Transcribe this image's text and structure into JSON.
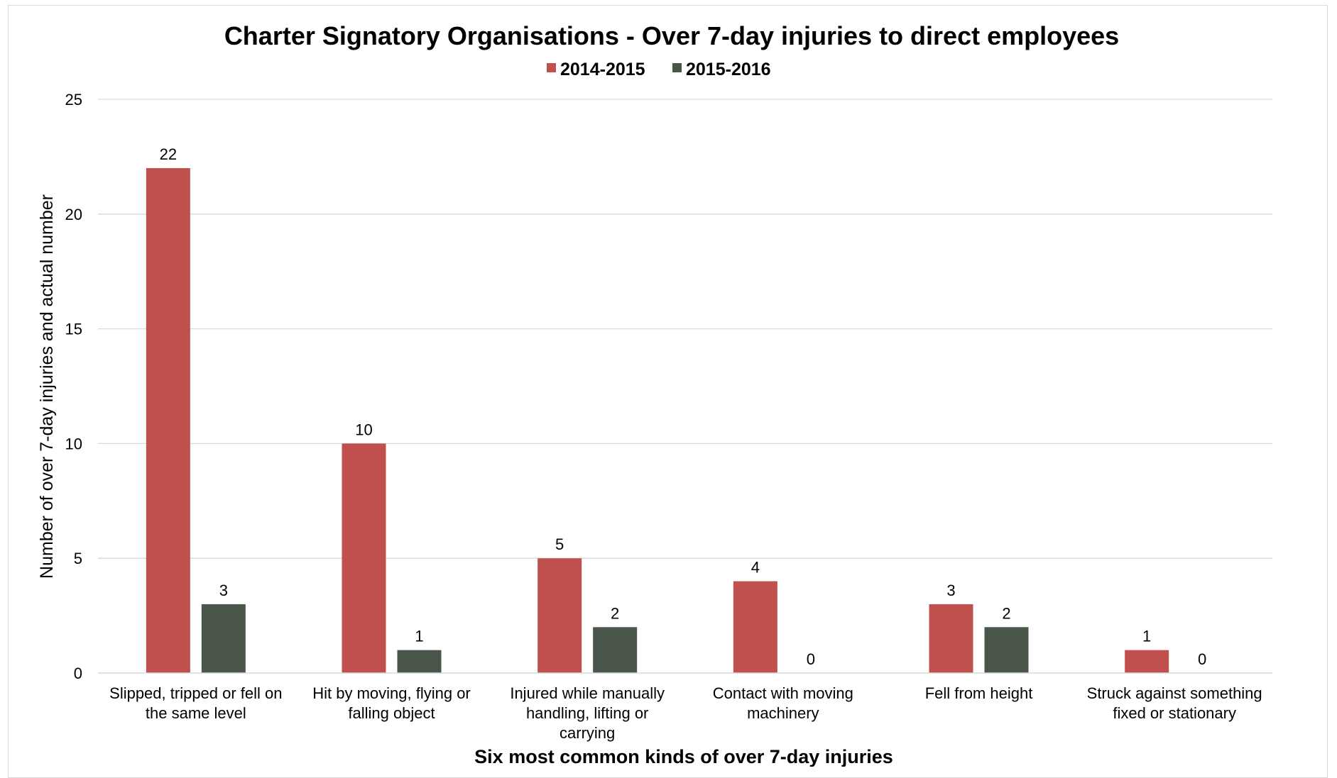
{
  "chart_data": {
    "type": "bar",
    "title": "Charter Signatory Organisations - Over 7-day injuries to direct employees",
    "xlabel": "Six most common kinds of over 7-day injuries",
    "ylabel": "Number of over 7-day injuries and actual number",
    "ylim": [
      0,
      25
    ],
    "yticks": [
      "0",
      "5",
      "10",
      "15",
      "20",
      "25"
    ],
    "grid": true,
    "legend_position": "top",
    "categories": [
      [
        "Slipped, tripped or fell on",
        "the same level"
      ],
      [
        "Hit by moving, flying or",
        "falling object"
      ],
      [
        "Injured while manually",
        "handling, lifting or",
        "carrying"
      ],
      [
        "Contact with moving",
        "machinery"
      ],
      [
        "Fell from height"
      ],
      [
        "Struck against something",
        "fixed or stationary"
      ]
    ],
    "series": [
      {
        "name": "2014-2015",
        "color": "#c0504d",
        "values": [
          22,
          10,
          5,
          4,
          3,
          1
        ]
      },
      {
        "name": "2015-2016",
        "color": "#4a5649",
        "values": [
          3,
          1,
          2,
          0,
          2,
          0
        ]
      }
    ]
  }
}
